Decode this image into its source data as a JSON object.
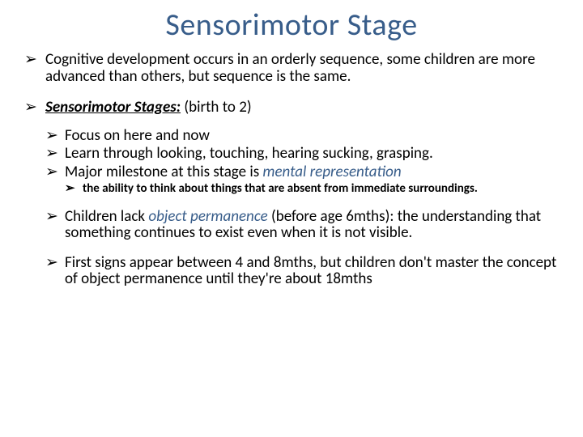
{
  "colors": {
    "title_color": "#385d8a",
    "text_color": "#000000",
    "background": "#ffffff",
    "accent_italic": "#385d8a"
  },
  "typography": {
    "title_fontsize": 38,
    "body_fontsize": 19,
    "sub_fontsize": 15,
    "font_family": "Calibri"
  },
  "title": "Sensorimotor Stage",
  "bullets": {
    "b1": "Cognitive development occurs in an orderly sequence, some children are more advanced than others, but sequence is the same.",
    "b2_label": "Sensorimotor Stages:",
    "b2_suffix": " (birth to 2)",
    "b2_sub": {
      "s1": "Focus on here and now",
      "s2": "Learn through looking, touching, hearing sucking, grasping.",
      "s3_pre": "Major milestone at this stage is ",
      "s3_em": "mental representation",
      "s3_sub1": "the ability to think about things that are absent from immediate surroundings.",
      "s4_pre": "Children lack ",
      "s4_em": "object permanence",
      "s4_post": " (before age 6mths): the understanding that something continues to exist even when it is not visible.",
      "s5": " First signs appear between 4 and 8mths, but children don't master the concept of object permanence until they're about 18mths"
    }
  }
}
